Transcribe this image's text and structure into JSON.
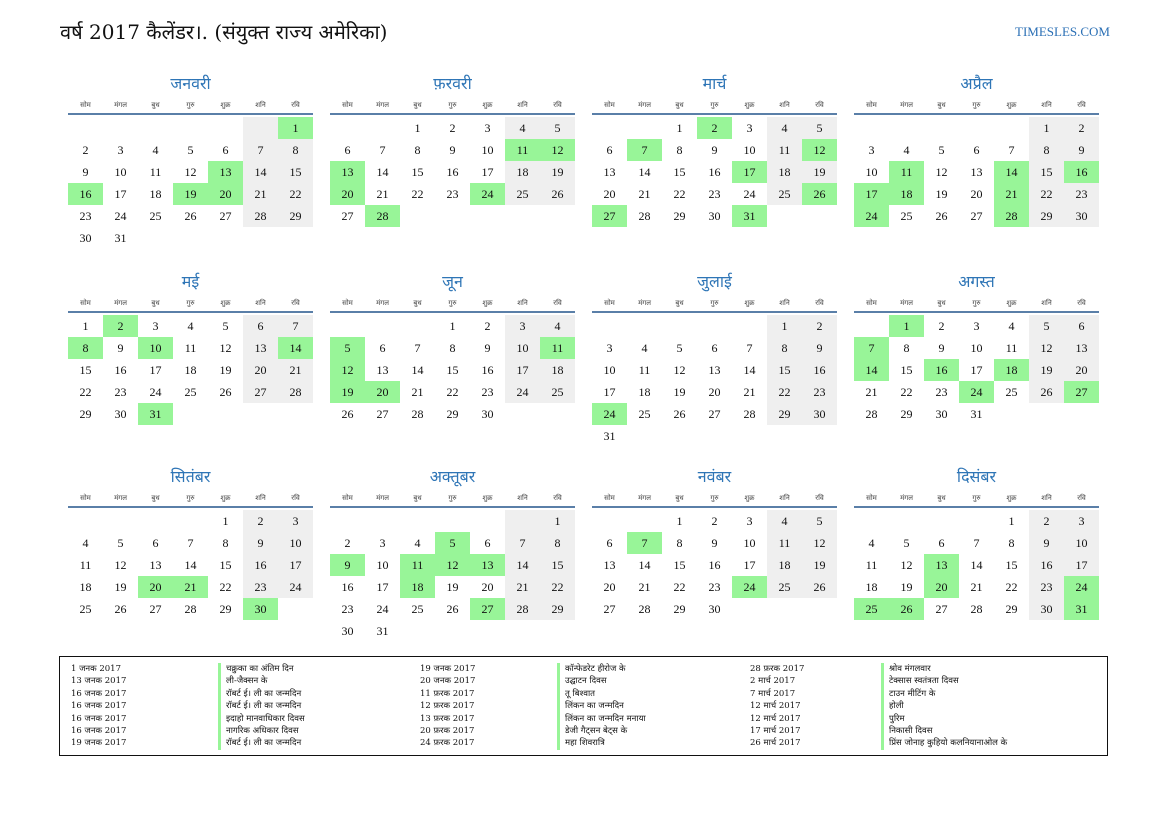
{
  "header": {
    "title": "वर्ष 2017 कैलेंडर।. (संयुक्त राज्य अमेरिका)",
    "site": "TIMESLES.COM"
  },
  "colors": {
    "accent": "#2e75b6",
    "holiday": "#98f598",
    "weekend": "#efefef"
  },
  "weekdays": [
    "सोम",
    "मंगल",
    "बुध",
    "गुरु",
    "शुक्र",
    "शनि",
    "रवि"
  ],
  "months": [
    {
      "name": "जनवरी",
      "offset": 6,
      "days": 31,
      "holidays": [
        1,
        13,
        16,
        19,
        20
      ]
    },
    {
      "name": "फ़रवरी",
      "offset": 2,
      "days": 28,
      "holidays": [
        11,
        12,
        13,
        20,
        24,
        28
      ]
    },
    {
      "name": "मार्च",
      "offset": 2,
      "days": 31,
      "holidays": [
        2,
        7,
        12,
        17,
        26,
        27,
        31
      ]
    },
    {
      "name": "अप्रैल",
      "offset": 5,
      "days": 30,
      "holidays": [
        11,
        14,
        16,
        17,
        18,
        21,
        24,
        28
      ]
    },
    {
      "name": "मई",
      "offset": 0,
      "days": 31,
      "holidays": [
        2,
        8,
        10,
        14,
        31
      ]
    },
    {
      "name": "जून",
      "offset": 3,
      "days": 30,
      "holidays": [
        5,
        11,
        12,
        19,
        20
      ]
    },
    {
      "name": "जुलाई",
      "offset": 5,
      "days": 31,
      "holidays": [
        24
      ]
    },
    {
      "name": "अगस्त",
      "offset": 1,
      "days": 31,
      "holidays": [
        1,
        7,
        14,
        16,
        18,
        24,
        27
      ]
    },
    {
      "name": "सितंबर",
      "offset": 4,
      "days": 30,
      "holidays": [
        20,
        21,
        30
      ]
    },
    {
      "name": "अक्तूबर",
      "offset": 6,
      "days": 31,
      "holidays": [
        5,
        9,
        11,
        12,
        13,
        18,
        27
      ]
    },
    {
      "name": "नवंबर",
      "offset": 2,
      "days": 30,
      "holidays": [
        7,
        24
      ]
    },
    {
      "name": "दिसंबर",
      "offset": 4,
      "days": 31,
      "holidays": [
        13,
        20,
        24,
        25,
        26,
        31
      ]
    }
  ],
  "holidays_list": [
    [
      {
        "date": "1 जनक 2017",
        "name": "चक्रुका का अंतिम दिन"
      },
      {
        "date": "13 जनक 2017",
        "name": "ली-जैक्सन के"
      },
      {
        "date": "16 जनक 2017",
        "name": "रॉबर्ट ई। ली का जन्मदिन"
      },
      {
        "date": "16 जनक 2017",
        "name": "रॉबर्ट ई। ली का जन्मदिन"
      },
      {
        "date": "16 जनक 2017",
        "name": "इदाहो मानवाधिकार दिवस"
      },
      {
        "date": "16 जनक 2017",
        "name": "नागरिक अधिकार दिवस"
      },
      {
        "date": "19 जनक 2017",
        "name": "रॉबर्ट ई। ली का जन्मदिन"
      }
    ],
    [
      {
        "date": "19 जनक 2017",
        "name": "कॉन्फेडरेट हीरोज के"
      },
      {
        "date": "20 जनक 2017",
        "name": "उद्घाटन दिवस"
      },
      {
        "date": "11 फ़रक 2017",
        "name": "तू बिश्वात"
      },
      {
        "date": "12 फ़रक 2017",
        "name": "लिंकन का जन्मदिन"
      },
      {
        "date": "13 फ़रक 2017",
        "name": "लिंकन का जन्मदिन मनाया"
      },
      {
        "date": "20 फ़रक 2017",
        "name": "डेजी गैट्सन बेट्स के"
      },
      {
        "date": "24 फ़रक 2017",
        "name": "महा शिवरात्रि"
      }
    ],
    [
      {
        "date": "28 फ़रक 2017",
        "name": "श्रोव मंगलवार"
      },
      {
        "date": "2 मार्च 2017",
        "name": "टेक्सास स्वतंत्रता दिवस"
      },
      {
        "date": "7 मार्च 2017",
        "name": "टाउन मीटिंग के"
      },
      {
        "date": "12 मार्च 2017",
        "name": "होली"
      },
      {
        "date": "12 मार्च 2017",
        "name": "पुरिम"
      },
      {
        "date": "17 मार्च 2017",
        "name": "निकासी दिवस"
      },
      {
        "date": "26 मार्च 2017",
        "name": "प्रिंस जोनाह कुहियो कलनियानाओल के"
      }
    ]
  ]
}
